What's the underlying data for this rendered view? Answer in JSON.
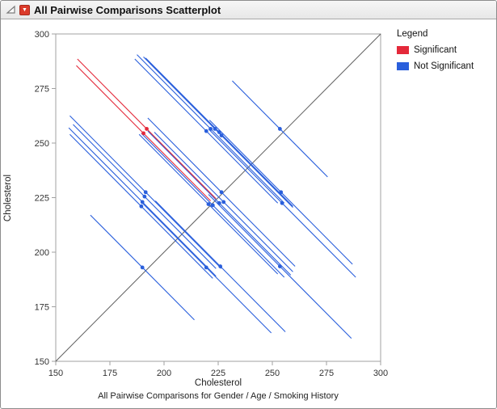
{
  "window": {
    "title": "All Pairwise Comparisons Scatterplot",
    "menu_button_color": "#db3b2b",
    "icons": {
      "menu_caret": "▼",
      "disclosure": "open-triangle"
    }
  },
  "legend": {
    "title": "Legend",
    "items": [
      {
        "label": "Significant",
        "color": "#e4293a"
      },
      {
        "label": "Not Significant",
        "color": "#2a5fdc"
      }
    ]
  },
  "chart_data": {
    "type": "scatter",
    "title": "All Pairwise Comparisons Scatterplot",
    "xlabel": "Cholesterol",
    "ylabel": "Cholesterol",
    "caption": "All Pairwise Comparisons for Gender / Age / Smoking History",
    "xlim": [
      150,
      300
    ],
    "ylim": [
      150,
      300
    ],
    "xticks": [
      150,
      175,
      200,
      225,
      250,
      275,
      300
    ],
    "yticks": [
      150,
      175,
      200,
      225,
      250,
      275,
      300
    ],
    "grid": false,
    "legend_position": "right",
    "identity_line": {
      "from": [
        150,
        150
      ],
      "to": [
        300,
        300
      ],
      "color": "#5f5f5f"
    },
    "colors": {
      "significant": "#e4293a",
      "not_significant": "#2a5fdc",
      "frame": "#a0a0a0",
      "tick_text": "#333333"
    },
    "comparisons": [
      {
        "x": 190.5,
        "y": 254.5,
        "half": 31,
        "significant": true
      },
      {
        "x": 192.0,
        "y": 256.5,
        "half": 32,
        "significant": true
      },
      {
        "x": 189.5,
        "y": 221.0,
        "half": 33,
        "significant": false
      },
      {
        "x": 190.0,
        "y": 223.0,
        "half": 34,
        "significant": false
      },
      {
        "x": 191.0,
        "y": 225.5,
        "half": 33,
        "significant": false
      },
      {
        "x": 191.5,
        "y": 227.5,
        "half": 35,
        "significant": false
      },
      {
        "x": 219.5,
        "y": 255.5,
        "half": 33,
        "significant": false
      },
      {
        "x": 221.5,
        "y": 256.5,
        "half": 34,
        "significant": false
      },
      {
        "x": 223.5,
        "y": 256.5,
        "half": 33,
        "significant": false
      },
      {
        "x": 225.5,
        "y": 255.0,
        "half": 34,
        "significant": false
      },
      {
        "x": 226.5,
        "y": 253.5,
        "half": 33,
        "significant": false
      },
      {
        "x": 220.5,
        "y": 222.0,
        "half": 32,
        "significant": false
      },
      {
        "x": 222.5,
        "y": 221.5,
        "half": 33,
        "significant": false
      },
      {
        "x": 225.5,
        "y": 222.5,
        "half": 33,
        "significant": false
      },
      {
        "x": 226.5,
        "y": 227.5,
        "half": 34,
        "significant": false
      },
      {
        "x": 227.5,
        "y": 223.0,
        "half": 32,
        "significant": false
      },
      {
        "x": 253.5,
        "y": 256.5,
        "half": 22,
        "significant": false
      },
      {
        "x": 254.0,
        "y": 227.5,
        "half": 33,
        "significant": false
      },
      {
        "x": 254.5,
        "y": 222.5,
        "half": 34,
        "significant": false
      },
      {
        "x": 190.0,
        "y": 193.0,
        "half": 24,
        "significant": false
      },
      {
        "x": 219.5,
        "y": 193.0,
        "half": 30,
        "significant": false
      },
      {
        "x": 226.0,
        "y": 193.5,
        "half": 30,
        "significant": false
      },
      {
        "x": 253.5,
        "y": 193.5,
        "half": 33,
        "significant": false
      }
    ]
  }
}
